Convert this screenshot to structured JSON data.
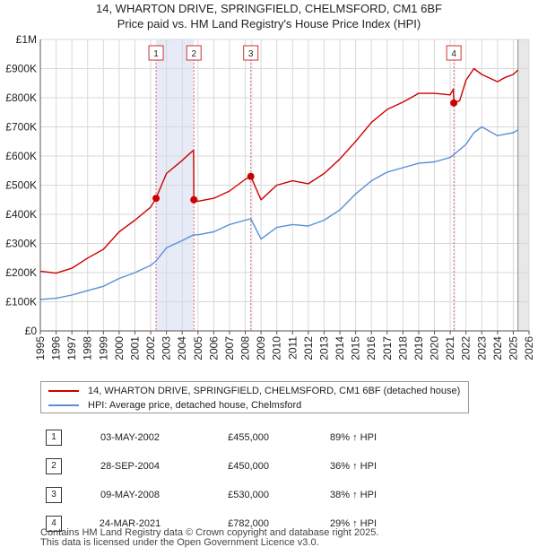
{
  "chart_data": {
    "type": "line",
    "title": "14, WHARTON DRIVE, SPRINGFIELD, CHELMSFORD, CM1 6BF",
    "subtitle": "Price paid vs. HM Land Registry's House Price Index (HPI)",
    "ylim": [
      0,
      1000000
    ],
    "xlim": [
      1995,
      2026
    ],
    "y_ticks": [
      {
        "v": 0,
        "label": "£0"
      },
      {
        "v": 100000,
        "label": "£100K"
      },
      {
        "v": 200000,
        "label": "£200K"
      },
      {
        "v": 300000,
        "label": "£300K"
      },
      {
        "v": 400000,
        "label": "£400K"
      },
      {
        "v": 500000,
        "label": "£500K"
      },
      {
        "v": 600000,
        "label": "£600K"
      },
      {
        "v": 700000,
        "label": "£700K"
      },
      {
        "v": 800000,
        "label": "£800K"
      },
      {
        "v": 900000,
        "label": "£900K"
      },
      {
        "v": 1000000,
        "label": "£1M"
      }
    ],
    "x_ticks": [
      "1995",
      "1996",
      "1997",
      "1998",
      "1999",
      "2000",
      "2001",
      "2002",
      "2003",
      "2004",
      "2005",
      "2006",
      "2007",
      "2008",
      "2009",
      "2010",
      "2011",
      "2012",
      "2013",
      "2014",
      "2015",
      "2016",
      "2017",
      "2018",
      "2019",
      "2020",
      "2021",
      "2022",
      "2023",
      "2024",
      "2025",
      "2026"
    ],
    "series": [
      {
        "name": "14, WHARTON DRIVE, SPRINGFIELD, CHELMSFORD, CM1 6BF (detached house)",
        "color": "#cc0000",
        "x": [
          1995,
          1996,
          1997,
          1998,
          1999,
          2000,
          2001,
          2002,
          2002.34,
          2003,
          2004,
          2004.5,
          2004.72,
          2004.74,
          2005,
          2006,
          2007,
          2008,
          2008.35,
          2009,
          2010,
          2011,
          2012,
          2013,
          2014,
          2015,
          2016,
          2017,
          2018,
          2019,
          2020,
          2021,
          2021.2,
          2021.23,
          2021.6,
          2022,
          2022.5,
          2023,
          2024,
          2024.5,
          2025,
          2025.3
        ],
        "y": [
          205000,
          198000,
          215000,
          250000,
          280000,
          340000,
          380000,
          425000,
          455000,
          540000,
          585000,
          610000,
          620000,
          450000,
          445000,
          455000,
          480000,
          520000,
          530000,
          450000,
          500000,
          515000,
          505000,
          540000,
          590000,
          650000,
          715000,
          760000,
          785000,
          815000,
          815000,
          810000,
          830000,
          782000,
          790000,
          860000,
          900000,
          880000,
          855000,
          870000,
          880000,
          895000
        ]
      },
      {
        "name": "HPI: Average price, detached house, Chelmsford",
        "color": "#5b8ed6",
        "x": [
          1995,
          1996,
          1997,
          1998,
          1999,
          2000,
          2001,
          2002,
          2002.34,
          2003,
          2004,
          2004.72,
          2005,
          2006,
          2007,
          2008,
          2008.35,
          2009,
          2010,
          2011,
          2012,
          2013,
          2014,
          2015,
          2016,
          2017,
          2018,
          2019,
          2020,
          2021,
          2021.23,
          2022,
          2022.5,
          2023,
          2024,
          2024.5,
          2025,
          2025.3
        ],
        "y": [
          108000,
          112000,
          123000,
          138000,
          153000,
          180000,
          200000,
          225000,
          240000,
          285000,
          310000,
          330000,
          330000,
          340000,
          365000,
          380000,
          385000,
          315000,
          355000,
          365000,
          360000,
          380000,
          415000,
          470000,
          515000,
          545000,
          560000,
          575000,
          580000,
          595000,
          605000,
          640000,
          680000,
          700000,
          670000,
          675000,
          680000,
          690000
        ]
      }
    ],
    "sales": [
      {
        "num": "1",
        "x": 2002.34,
        "value": 455000
      },
      {
        "num": "2",
        "x": 2004.74,
        "value": 450000
      },
      {
        "num": "3",
        "x": 2008.35,
        "value": 530000
      },
      {
        "num": "4",
        "x": 2021.23,
        "value": 782000
      }
    ],
    "shaded_ranges": [
      [
        2002.34,
        2004.74
      ],
      [
        2008.35,
        2008.45
      ],
      [
        2021.23,
        2021.33
      ],
      [
        2025.3,
        2026
      ]
    ]
  },
  "legend": {
    "property_label": "14, WHARTON DRIVE, SPRINGFIELD, CHELMSFORD, CM1 6BF (detached house)",
    "hpi_label": "HPI: Average price, detached house, Chelmsford",
    "property_color": "#cc0000",
    "hpi_color": "#5b8ed6"
  },
  "transactions": [
    {
      "num": "1",
      "date": "03-MAY-2002",
      "price": "£455,000",
      "hpi": "89% ↑ HPI"
    },
    {
      "num": "2",
      "date": "28-SEP-2004",
      "price": "£450,000",
      "hpi": "36% ↑ HPI"
    },
    {
      "num": "3",
      "date": "09-MAY-2008",
      "price": "£530,000",
      "hpi": "38% ↑ HPI"
    },
    {
      "num": "4",
      "date": "24-MAR-2021",
      "price": "£782,000",
      "hpi": "29% ↑ HPI"
    }
  ],
  "footer": {
    "line1": "Contains HM Land Registry data © Crown copyright and database right 2025.",
    "line2": "This data is licensed under the Open Government Licence v3.0."
  }
}
